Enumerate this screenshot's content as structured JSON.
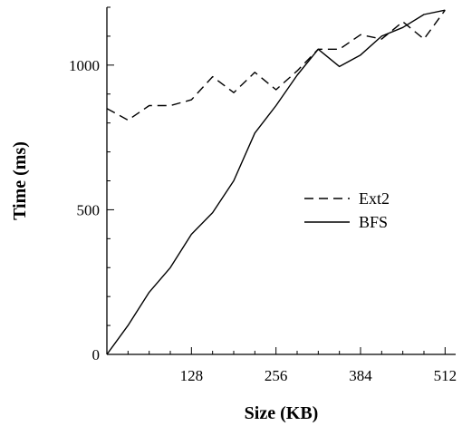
{
  "chart_data": {
    "type": "line",
    "title": "",
    "xlabel": "Size (KB)",
    "ylabel": "Time (ms)",
    "xlim": [
      0,
      528
    ],
    "ylim": [
      0,
      1200
    ],
    "x_ticks": [
      128,
      256,
      384,
      512
    ],
    "y_ticks": [
      0,
      500,
      1000
    ],
    "legend_position": "right",
    "grid": false,
    "series": [
      {
        "name": "Ext2",
        "style": "dashed",
        "color": "#000000",
        "x": [
          0,
          32,
          64,
          96,
          128,
          160,
          192,
          224,
          256,
          288,
          320,
          352,
          384,
          416,
          448,
          480,
          512
        ],
        "y": [
          850,
          810,
          860,
          860,
          880,
          960,
          905,
          975,
          915,
          980,
          1055,
          1055,
          1105,
          1090,
          1150,
          1090,
          1190
        ]
      },
      {
        "name": "BFS",
        "style": "solid",
        "color": "#000000",
        "x": [
          0,
          32,
          64,
          96,
          128,
          160,
          192,
          224,
          256,
          288,
          320,
          352,
          384,
          416,
          448,
          480,
          512
        ],
        "y": [
          0,
          100,
          215,
          300,
          415,
          490,
          600,
          765,
          860,
          965,
          1055,
          995,
          1035,
          1100,
          1130,
          1175,
          1190
        ]
      }
    ]
  }
}
